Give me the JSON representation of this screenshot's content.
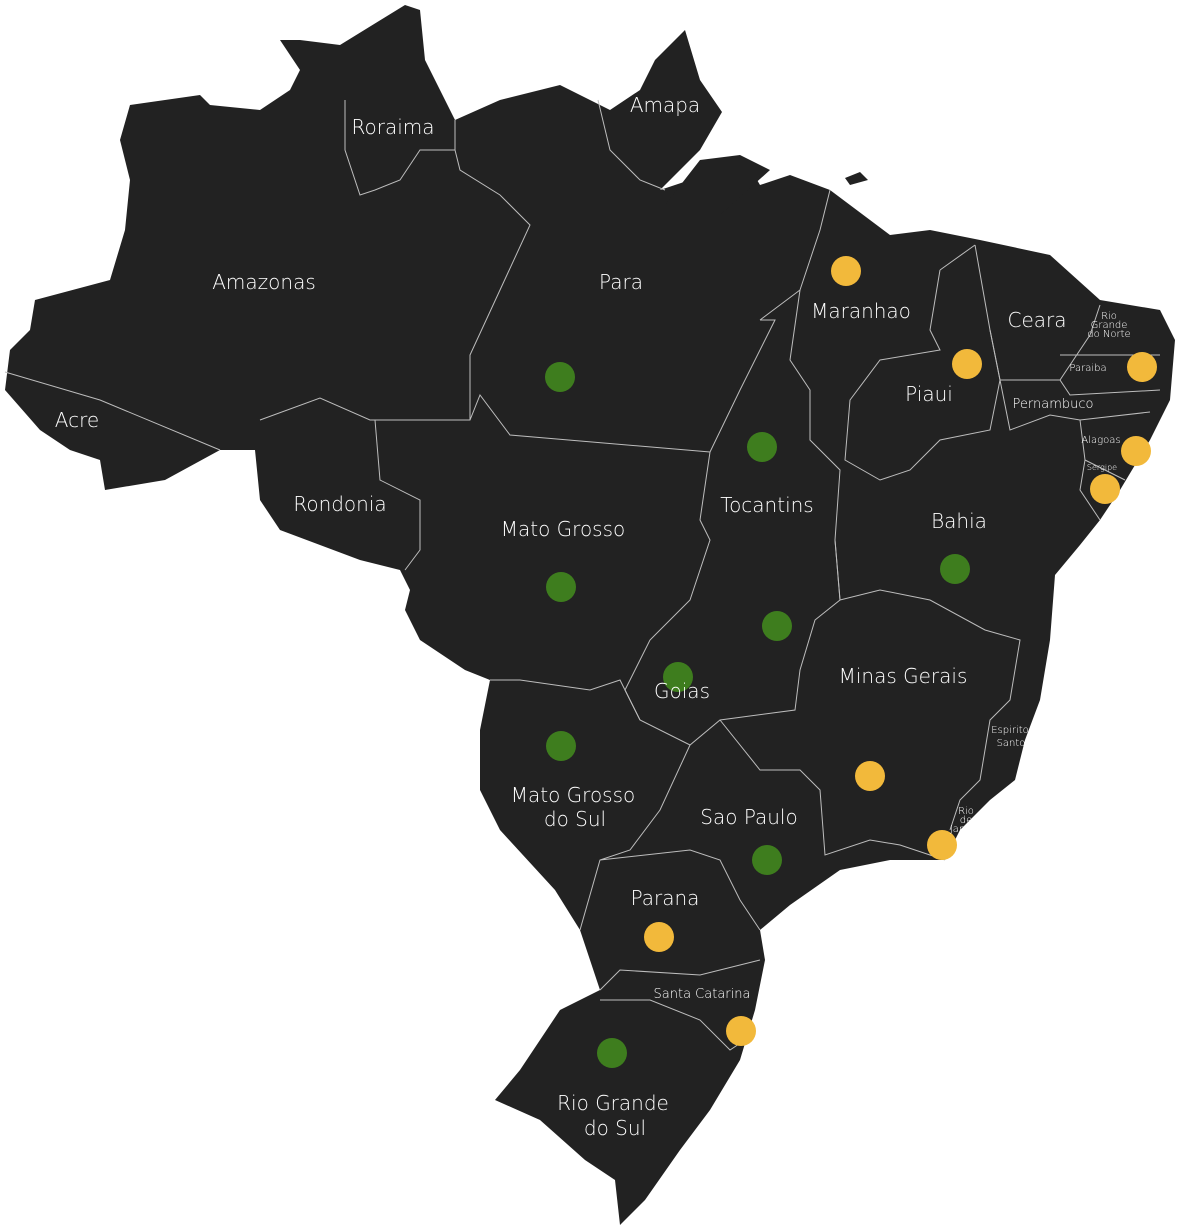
{
  "colors": {
    "land": "#222222",
    "border": "#bdbdbd",
    "label": "#ffffff",
    "marker_yellow": "#f2b93b",
    "marker_green": "#3e7d1e"
  },
  "states": {
    "roraima": "Roraima",
    "amapa": "Amapa",
    "amazonas": "Amazonas",
    "para": "Para",
    "maranhao": "Maranhao",
    "ceara": "Ceara",
    "rio_grande_do_norte": [
      "Rio",
      "Grande",
      "do Norte"
    ],
    "paraiba": "Paraiba",
    "piaui": "Piaui",
    "pernambuco": "Pernambuco",
    "alagoas": "Alagoas",
    "sergipe": "Sergipe",
    "acre": "Acre",
    "rondonia": "Rondonia",
    "tocantins": "Tocantins",
    "bahia": "Bahia",
    "mato_grosso": "Mato Grosso",
    "goias": "Goias",
    "minas_gerais": "Minas Gerais",
    "espirito_santo": [
      "Espirito",
      "Santo"
    ],
    "mato_grosso_do_sul": [
      "Mato Grosso",
      "do Sul"
    ],
    "sao_paulo": "Sao Paulo",
    "rio_de_janeiro": [
      "Rio",
      "de",
      "Janeiro"
    ],
    "parana": "Parana",
    "santa_catarina": "Santa Catarina",
    "rio_grande_do_sul": [
      "Rio Grande",
      "do Sul"
    ]
  },
  "markers": [
    {
      "state": "Maranhao",
      "color": "yellow"
    },
    {
      "state": "Piaui",
      "color": "yellow"
    },
    {
      "state": "Paraiba",
      "color": "yellow"
    },
    {
      "state": "Alagoas",
      "color": "yellow"
    },
    {
      "state": "Sergipe",
      "color": "yellow"
    },
    {
      "state": "Para",
      "color": "green"
    },
    {
      "state": "Tocantins",
      "color": "green"
    },
    {
      "state": "Bahia",
      "color": "green"
    },
    {
      "state": "Mato Grosso",
      "color": "green"
    },
    {
      "state": "Goias",
      "color": "green"
    },
    {
      "state": "Distrito Federal",
      "color": "green"
    },
    {
      "state": "Minas Gerais",
      "color": "yellow"
    },
    {
      "state": "Mato Grosso do Sul",
      "color": "green"
    },
    {
      "state": "Sao Paulo",
      "color": "green"
    },
    {
      "state": "Rio de Janeiro",
      "color": "yellow"
    },
    {
      "state": "Parana",
      "color": "yellow"
    },
    {
      "state": "Santa Catarina",
      "color": "yellow"
    },
    {
      "state": "Rio Grande do Sul",
      "color": "green"
    }
  ]
}
